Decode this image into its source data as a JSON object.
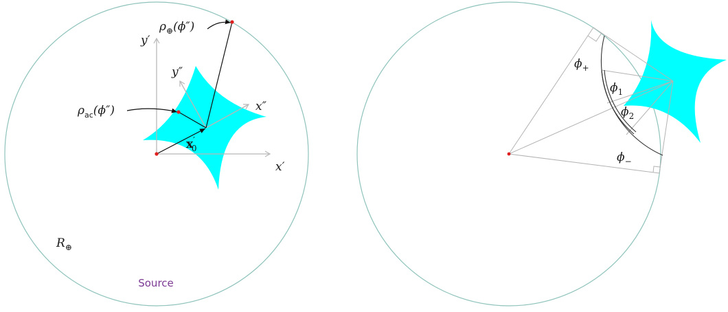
{
  "colors": {
    "caustic_fill": "#00ffff",
    "circle_stroke": "#8fc3bc",
    "source_label": "#7b3a93",
    "origin_dot": "#e02020"
  },
  "left_panel": {
    "axis_labels": {
      "y_prime": "y′",
      "x_prime": "x′",
      "y_double_prime": "y″",
      "x_double_prime": "x″"
    },
    "rho_oplus": {
      "base": "ρ",
      "sub": "⊕",
      "arg": "(ϕ″)"
    },
    "rho_ac": {
      "base": "ρ",
      "sub": "ac",
      "arg": "(ϕ″)"
    },
    "x0": {
      "base": "x",
      "sup": "′",
      "sub": "0"
    },
    "radius": {
      "base": "R",
      "sub": "⊕"
    },
    "source_label": "Source"
  },
  "right_panel": {
    "phi_plus": {
      "base": "ϕ",
      "sub": "+"
    },
    "phi_1": {
      "base": "ϕ",
      "sub": "1"
    },
    "phi_2": {
      "base": "ϕ",
      "sub": "2"
    },
    "phi_minus": {
      "base": "ϕ",
      "sub": "−"
    }
  }
}
